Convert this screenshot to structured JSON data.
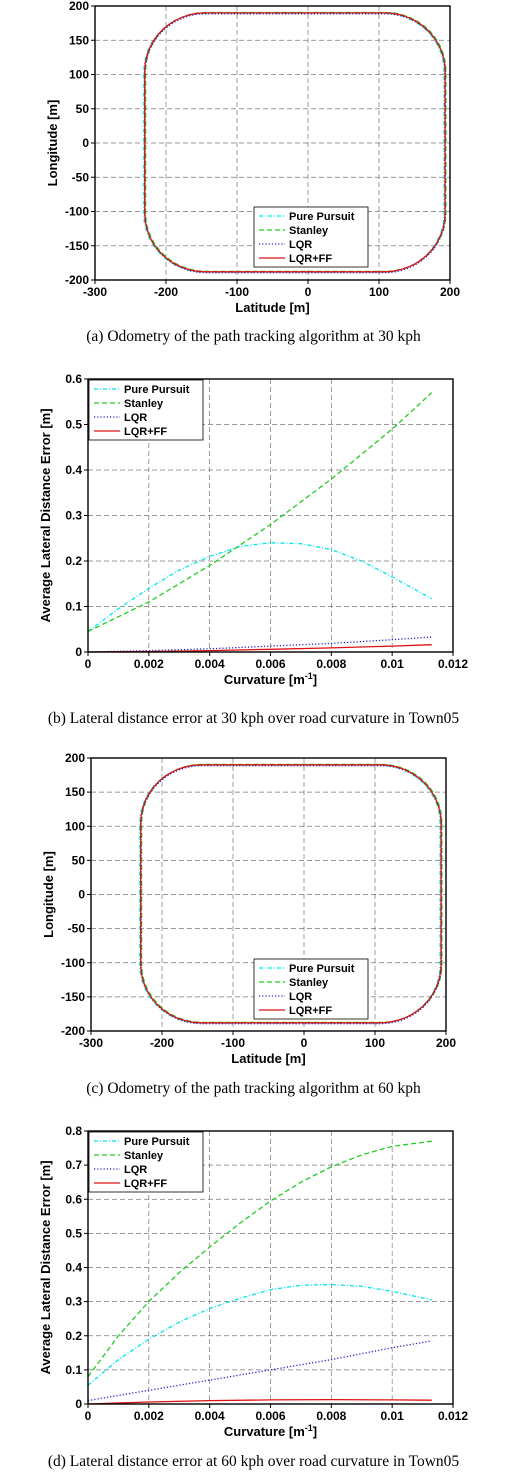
{
  "colors": {
    "pure_pursuit": "#00e5ee",
    "stanley": "#22cc22",
    "lqr": "#2222cc",
    "lqr_ff": "#dd1111",
    "grid": "#777777"
  },
  "captions": {
    "a": "(a) Odometry of the path tracking algorithm at 30 kph",
    "b": "(b) Lateral distance error at 30 kph over road curvature in Town05",
    "c": "(c) Odometry of the path tracking algorithm at 60 kph",
    "d": "(d) Lateral distance error at 60 kph over road curvature in Town05"
  },
  "chart_data": [
    {
      "id": "a",
      "type": "line",
      "xlabel": "Latitude [m]",
      "ylabel": "Longitude [m]",
      "xlim": [
        -300,
        200
      ],
      "ylim": [
        -200,
        200
      ],
      "xticks": [
        -300,
        -200,
        -100,
        0,
        100,
        200
      ],
      "yticks": [
        -200,
        -150,
        -100,
        -50,
        0,
        50,
        100,
        150,
        200
      ],
      "grid": true,
      "legend_position": "bottom-right",
      "path": {
        "xmin": -230,
        "xmax": 193,
        "ymin": -188,
        "ymax": 190,
        "corner_radius": 85
      },
      "series": [
        {
          "name": "Pure Pursuit",
          "color_key": "pure_pursuit",
          "style": "dashdot"
        },
        {
          "name": "Stanley",
          "color_key": "stanley",
          "style": "dashed"
        },
        {
          "name": "LQR",
          "color_key": "lqr",
          "style": "dotted"
        },
        {
          "name": "LQR+FF",
          "color_key": "lqr_ff",
          "style": "solid"
        }
      ]
    },
    {
      "id": "b",
      "type": "line",
      "xlabel": "Curvature [m",
      "xlabel_sup": "-1",
      "xlabel_suffix": "]",
      "ylabel": "Average Lateral Distance Error [m]",
      "xlim": [
        0,
        0.012
      ],
      "ylim": [
        0,
        0.6
      ],
      "xticks": [
        0,
        0.002,
        0.004,
        0.006,
        0.008,
        0.01,
        0.012
      ],
      "xtick_labels": [
        "0",
        "0.002",
        "0.004",
        "0.006",
        "0.008",
        "0.01",
        "0.012"
      ],
      "yticks": [
        0,
        0.1,
        0.2,
        0.3,
        0.4,
        0.5,
        0.6
      ],
      "ytick_labels": [
        "0",
        "0.1",
        "0.2",
        "0.3",
        "0.4",
        "0.5",
        "0.6"
      ],
      "grid": true,
      "legend_position": "top-left",
      "series": [
        {
          "name": "Pure Pursuit",
          "color_key": "pure_pursuit",
          "style": "dashdot",
          "x": [
            0,
            0.001,
            0.002,
            0.003,
            0.004,
            0.005,
            0.006,
            0.007,
            0.008,
            0.009,
            0.01,
            0.0113
          ],
          "y": [
            0.045,
            0.095,
            0.14,
            0.18,
            0.21,
            0.232,
            0.24,
            0.238,
            0.225,
            0.2,
            0.165,
            0.117
          ]
        },
        {
          "name": "Stanley",
          "color_key": "stanley",
          "style": "dashed",
          "x": [
            0,
            0.002,
            0.004,
            0.006,
            0.008,
            0.01,
            0.0113
          ],
          "y": [
            0.045,
            0.11,
            0.19,
            0.28,
            0.38,
            0.49,
            0.57
          ]
        },
        {
          "name": "LQR",
          "color_key": "lqr",
          "style": "dotted",
          "x": [
            0,
            0.002,
            0.004,
            0.006,
            0.008,
            0.01,
            0.0113
          ],
          "y": [
            0.0,
            0.003,
            0.007,
            0.013,
            0.019,
            0.027,
            0.033
          ]
        },
        {
          "name": "LQR+FF",
          "color_key": "lqr_ff",
          "style": "solid",
          "x": [
            0,
            0.002,
            0.004,
            0.006,
            0.008,
            0.01,
            0.0113
          ],
          "y": [
            0.0,
            0.001,
            0.003,
            0.006,
            0.009,
            0.013,
            0.016
          ]
        }
      ]
    },
    {
      "id": "c",
      "type": "line",
      "xlabel": "Latitude [m]",
      "ylabel": "Longitude [m]",
      "xlim": [
        -300,
        200
      ],
      "ylim": [
        -200,
        200
      ],
      "xticks": [
        -300,
        -200,
        -100,
        0,
        100,
        200
      ],
      "yticks": [
        -200,
        -150,
        -100,
        -50,
        0,
        50,
        100,
        150,
        200
      ],
      "grid": true,
      "legend_position": "bottom-right",
      "path": {
        "xmin": -230,
        "xmax": 193,
        "ymin": -188,
        "ymax": 190,
        "corner_radius": 85
      },
      "series": [
        {
          "name": "Pure Pursuit",
          "color_key": "pure_pursuit",
          "style": "dashdot"
        },
        {
          "name": "Stanley",
          "color_key": "stanley",
          "style": "dashed"
        },
        {
          "name": "LQR",
          "color_key": "lqr",
          "style": "dotted"
        },
        {
          "name": "LQR+FF",
          "color_key": "lqr_ff",
          "style": "solid"
        }
      ]
    },
    {
      "id": "d",
      "type": "line",
      "xlabel": "Curvature [m",
      "xlabel_sup": "-1",
      "xlabel_suffix": "]",
      "ylabel": "Average Lateral Distance Error [m]",
      "xlim": [
        0,
        0.012
      ],
      "ylim": [
        0,
        0.8
      ],
      "xticks": [
        0,
        0.002,
        0.004,
        0.006,
        0.008,
        0.01,
        0.012
      ],
      "xtick_labels": [
        "0",
        "0.002",
        "0.004",
        "0.006",
        "0.008",
        "0.01",
        "0.012"
      ],
      "yticks": [
        0,
        0.1,
        0.2,
        0.3,
        0.4,
        0.5,
        0.6,
        0.7,
        0.8
      ],
      "ytick_labels": [
        "0",
        "0.1",
        "0.2",
        "0.3",
        "0.4",
        "0.5",
        "0.6",
        "0.7",
        "0.8"
      ],
      "grid": true,
      "legend_position": "top-left",
      "series": [
        {
          "name": "Pure Pursuit",
          "color_key": "pure_pursuit",
          "style": "dashdot",
          "x": [
            0,
            0.001,
            0.002,
            0.003,
            0.004,
            0.005,
            0.006,
            0.007,
            0.008,
            0.009,
            0.01,
            0.0113
          ],
          "y": [
            0.055,
            0.13,
            0.19,
            0.24,
            0.28,
            0.31,
            0.335,
            0.348,
            0.35,
            0.345,
            0.33,
            0.305
          ]
        },
        {
          "name": "Stanley",
          "color_key": "stanley",
          "style": "dashed",
          "x": [
            0,
            0.001,
            0.002,
            0.003,
            0.004,
            0.005,
            0.006,
            0.007,
            0.008,
            0.009,
            0.01,
            0.0113
          ],
          "y": [
            0.08,
            0.2,
            0.3,
            0.385,
            0.46,
            0.53,
            0.595,
            0.65,
            0.695,
            0.73,
            0.755,
            0.77
          ]
        },
        {
          "name": "LQR",
          "color_key": "lqr",
          "style": "dotted",
          "x": [
            0,
            0.002,
            0.004,
            0.006,
            0.008,
            0.01,
            0.0113
          ],
          "y": [
            0.01,
            0.04,
            0.07,
            0.1,
            0.13,
            0.165,
            0.185
          ]
        },
        {
          "name": "LQR+FF",
          "color_key": "lqr_ff",
          "style": "solid",
          "x": [
            0,
            0.002,
            0.004,
            0.006,
            0.008,
            0.01,
            0.0113
          ],
          "y": [
            0.0,
            0.006,
            0.01,
            0.012,
            0.013,
            0.012,
            0.011
          ]
        }
      ]
    }
  ]
}
